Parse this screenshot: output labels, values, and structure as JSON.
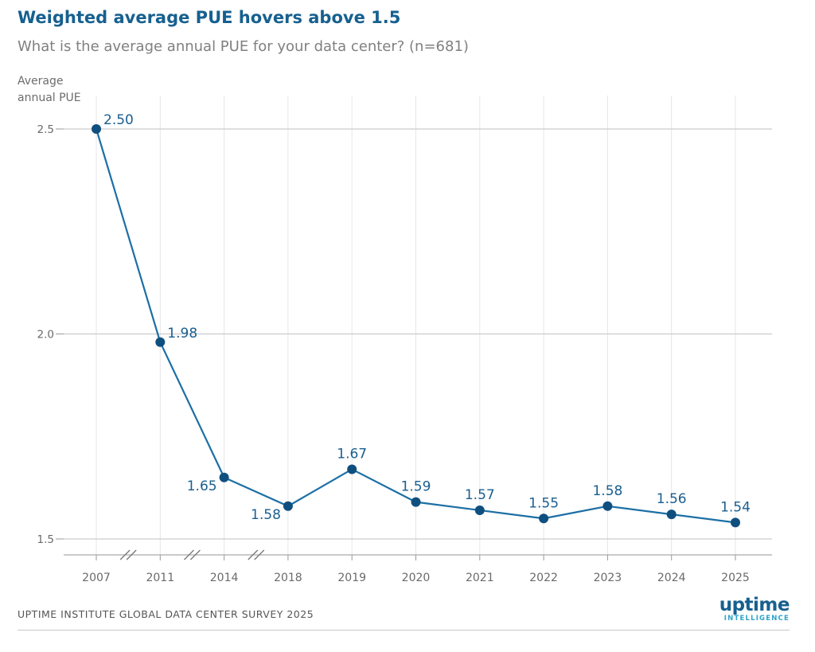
{
  "header": {
    "title": "Weighted average PUE hovers above 1.5",
    "subtitle": "What is the average annual PUE for your data center? (n=681)"
  },
  "chart_data": {
    "type": "line",
    "title": "Weighted average PUE hovers above 1.5",
    "subtitle": "What is the average annual PUE for your data center? (n=681)",
    "ylabel_lines": [
      "Average",
      "annual PUE"
    ],
    "xlabel": "",
    "categories": [
      "2007",
      "2011",
      "2014",
      "2018",
      "2019",
      "2020",
      "2021",
      "2022",
      "2023",
      "2024",
      "2025"
    ],
    "series": [
      {
        "values": [
          2.5,
          1.98,
          1.65,
          1.58,
          1.67,
          1.59,
          1.57,
          1.55,
          1.58,
          1.56,
          1.54
        ],
        "labels": [
          "2.50",
          "1.98",
          "1.65",
          "1.58",
          "1.67",
          "1.59",
          "1.57",
          "1.55",
          "1.58",
          "1.56",
          "1.54"
        ],
        "label_positions": [
          "right",
          "right",
          "left",
          "left",
          "above",
          "above",
          "above",
          "above",
          "above",
          "above",
          "above"
        ]
      }
    ],
    "yticks": [
      1.5,
      2.0,
      2.5
    ],
    "ytick_labels": [
      "1.5",
      "2.0",
      "2.5"
    ],
    "ylim": [
      1.5,
      2.5
    ],
    "grid": true,
    "axis_breaks_after": [
      "2007",
      "2011",
      "2014"
    ],
    "colors": {
      "line": "#1c6fa5",
      "marker": "#0f4f7f",
      "label": "#1a5e8f",
      "grid": "#cccccc",
      "axis_text": "#6a6a6a"
    }
  },
  "footer": {
    "source": "UPTIME INSTITUTE GLOBAL DATA CENTER SURVEY 2025",
    "logo_main": "uptime",
    "logo_sub": "INTELLIGENCE"
  }
}
